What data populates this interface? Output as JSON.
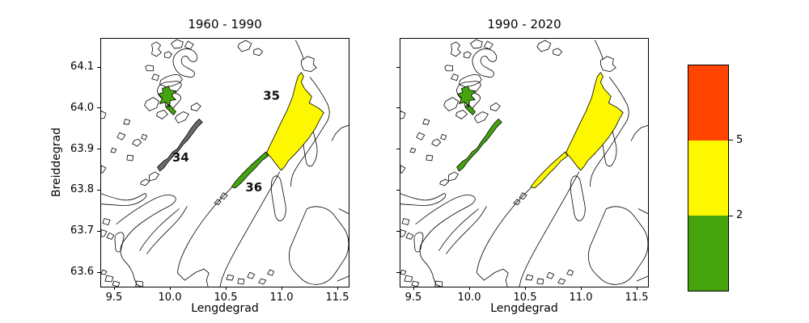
{
  "colors": {
    "green": "#45a40e",
    "yellow": "#fdf800",
    "orange_red": "#ff4500",
    "gray": "#6a6a6a",
    "coastline": "#000000",
    "background": "#ffffff"
  },
  "chart_data": {
    "type": "map-choropleth",
    "description_of_view": "Two coastal maps of the same fjord region with classified water areas, plus a shared class colorbar",
    "axis_ranges": {
      "x_lon": [
        9.38,
        11.62
      ],
      "y_lat": [
        63.56,
        64.17
      ]
    },
    "panels": [
      {
        "title": "1960 - 1990",
        "xlabel": "Lengdegrad",
        "ylabel": "Breiddegrad",
        "x_ticks": [
          "9.5",
          "10.0",
          "10.5",
          "11.0",
          "11.5"
        ],
        "y_ticks": [
          "64.1",
          "64.0",
          "63.9",
          "63.8",
          "63.7",
          "63.6"
        ],
        "show_y_tick_labels": true,
        "show_region_labels": true,
        "regions": [
          {
            "id": "area-nord",
            "label": "",
            "value_class": "green"
          },
          {
            "id": "area-34",
            "label": "34",
            "value_class": "gray"
          },
          {
            "id": "area-35",
            "label": "35",
            "value_class": "yellow"
          },
          {
            "id": "area-36",
            "label": "36",
            "value_class": "green"
          }
        ]
      },
      {
        "title": "1990 - 2020",
        "xlabel": "Lengdegrad",
        "ylabel": "",
        "x_ticks": [
          "9.5",
          "10.0",
          "10.5",
          "11.0",
          "11.5"
        ],
        "y_ticks": [
          "64.1",
          "64.0",
          "63.9",
          "63.8",
          "63.7",
          "63.6"
        ],
        "show_y_tick_labels": false,
        "show_region_labels": false,
        "regions": [
          {
            "id": "area-nord",
            "label": "",
            "value_class": "green"
          },
          {
            "id": "area-34",
            "label": "34",
            "value_class": "green"
          },
          {
            "id": "area-35",
            "label": "35",
            "value_class": "yellow"
          },
          {
            "id": "area-36",
            "label": "36",
            "value_class": "yellow"
          }
        ]
      }
    ],
    "colorbar": {
      "segments_top_to_bottom": [
        "orange_red",
        "yellow",
        "green"
      ],
      "tick_labels": [
        {
          "label": "5",
          "frac_from_top": 0.33333
        },
        {
          "label": "2",
          "frac_from_top": 0.66667
        }
      ]
    }
  }
}
